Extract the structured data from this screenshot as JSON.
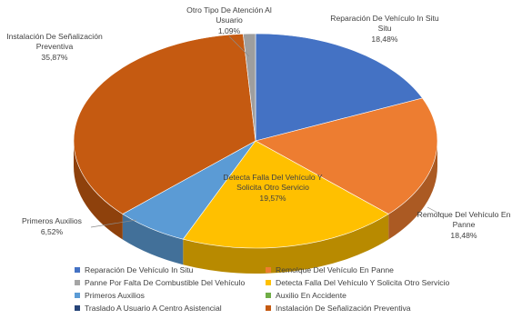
{
  "chart_data": {
    "type": "pie",
    "title": "",
    "labels": [
      "Reparación De Vehículo In Situ",
      "Remolque Del Vehículo En Panne",
      "Panne Por Falta De Combustible Del Vehículo",
      "Detecta Falla Del Vehículo Y Solicita Otro Servicio",
      "Primeros Auxilios",
      "Auxilio En Accidente",
      "Traslado A Usuario A Centro Asistencial",
      "Instalación De Señalización Preventiva",
      "Otro Tipo De Atención Al Usuario"
    ],
    "values": [
      18.48,
      18.48,
      0,
      19.57,
      6.52,
      0,
      0,
      35.87,
      1.09
    ],
    "value_labels": [
      "18,48%",
      "18,48%",
      "",
      "19,57%",
      "6,52%",
      "",
      "",
      "35,87%",
      "1,09%"
    ],
    "colors": [
      "#4472C4",
      "#ED7D31",
      "#A5A5A5",
      "#FFC000",
      "#5B9BD5",
      "#70AD47",
      "#264478",
      "#C55A11",
      "#9E9E9E"
    ],
    "legend_placement": "bottom",
    "legend_entries": [
      "Reparación De Vehículo In Situ",
      "Remolque Del Vehículo En Panne",
      "Panne Por Falta De Combustible Del Vehículo",
      "Detecta Falla Del Vehículo Y Solicita Otro Servicio",
      "Primeros Auxilios",
      "Auxilio En Accidente",
      "Traslado A Usuario A Centro Asistencial",
      "Instalación De Señalización Preventiva"
    ]
  }
}
